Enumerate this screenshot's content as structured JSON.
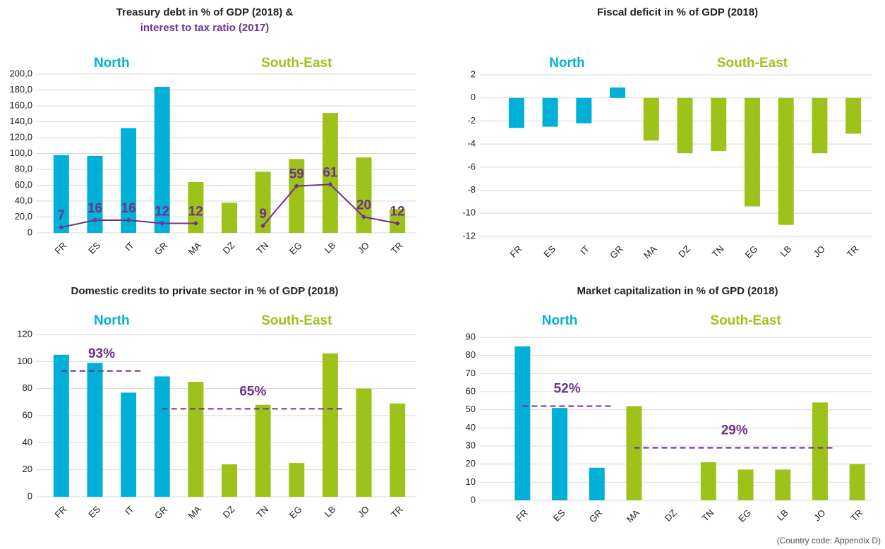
{
  "chart_data": [
    {
      "type": "bar",
      "title": "Treasury debt in % of GDP (2018) &",
      "subtitle": "interest to tax ratio (2017)",
      "subtitle_color": "#70308c",
      "categories": [
        "FR",
        "ES",
        "IT",
        "GR",
        "MA",
        "DZ",
        "TN",
        "EG",
        "LB",
        "JO",
        "TR"
      ],
      "groups": [
        {
          "name": "North",
          "color": "#00b0d8",
          "categories": [
            "FR",
            "ES",
            "IT",
            "GR"
          ]
        },
        {
          "name": "South-East",
          "color": "#9dc31a",
          "categories": [
            "MA",
            "DZ",
            "TN",
            "EG",
            "LB",
            "JO",
            "TR"
          ]
        }
      ],
      "values": [
        98,
        97,
        132,
        184,
        64,
        38,
        77,
        93,
        151,
        95,
        30
      ],
      "line": {
        "color": "#70308c",
        "values": [
          7,
          16,
          16,
          12,
          12,
          null,
          9,
          59,
          61,
          20,
          12
        ]
      },
      "ylim": [
        0,
        200
      ],
      "yticks": [
        0,
        {
          "value": 20,
          "label": "20,0"
        },
        {
          "value": 40,
          "label": "40,0"
        },
        {
          "value": 60,
          "label": "60,0"
        },
        {
          "value": 80,
          "label": "80,0"
        },
        {
          "value": 100,
          "label": "100,0"
        },
        {
          "value": 120,
          "label": "120,0"
        },
        {
          "value": 140,
          "label": "140,0"
        },
        {
          "value": 160,
          "label": "160,0"
        },
        {
          "value": 180,
          "label": "180,0"
        },
        {
          "value": 200,
          "label": "200,0"
        }
      ],
      "grid": true
    },
    {
      "type": "bar",
      "title": "Fiscal deficit in % of GDP (2018)",
      "categories": [
        "FR",
        "ES",
        "IT",
        "GR",
        "MA",
        "DZ",
        "TN",
        "EG",
        "LB",
        "JO",
        "TR"
      ],
      "groups": [
        {
          "name": "North",
          "color": "#00b0d8",
          "categories": [
            "FR",
            "ES",
            "IT",
            "GR"
          ]
        },
        {
          "name": "South-East",
          "color": "#9dc31a",
          "categories": [
            "MA",
            "DZ",
            "TN",
            "EG",
            "LB",
            "JO",
            "TR"
          ]
        }
      ],
      "values": [
        -2.6,
        -2.5,
        -2.2,
        0.9,
        -3.7,
        -4.8,
        -4.6,
        -9.4,
        -11,
        -4.8,
        -3.1
      ],
      "ylim": [
        -12,
        2
      ],
      "yticks": [
        -12,
        -10,
        -8,
        -6,
        -4,
        -2,
        0,
        2
      ],
      "grid": true
    },
    {
      "type": "bar",
      "title": "Domestic credits to private sector in % of GDP (2018)",
      "categories": [
        "FR",
        "ES",
        "IT",
        "GR",
        "MA",
        "DZ",
        "TN",
        "EG",
        "LB",
        "JO",
        "TR"
      ],
      "groups": [
        {
          "name": "North",
          "color": "#00b0d8",
          "categories": [
            "FR",
            "ES",
            "IT",
            "GR"
          ]
        },
        {
          "name": "South-East",
          "color": "#9dc31a",
          "categories": [
            "MA",
            "DZ",
            "TN",
            "EG",
            "LB",
            "JO",
            "TR"
          ]
        }
      ],
      "values": [
        105,
        99,
        77,
        89,
        85,
        24,
        68,
        25,
        106,
        80,
        69
      ],
      "reference_lines": [
        {
          "value": 93,
          "label": "93%",
          "from": "FR",
          "to": "IT",
          "color": "#70308c"
        },
        {
          "value": 65,
          "label": "65%",
          "from": "GR",
          "to": "LB",
          "color": "#70308c"
        }
      ],
      "ylim": [
        0,
        120
      ],
      "yticks": [
        0,
        20,
        40,
        60,
        80,
        100,
        120
      ],
      "grid": true
    },
    {
      "type": "bar",
      "title": "Market capitalization in % of GPD (2018)",
      "categories": [
        "FR",
        "ES",
        "GR",
        "MA",
        "DZ",
        "TN",
        "EG",
        "LB",
        "JO",
        "TR"
      ],
      "groups": [
        {
          "name": "North",
          "color": "#00b0d8",
          "categories": [
            "FR",
            "ES",
            "GR"
          ]
        },
        {
          "name": "South-East",
          "color": "#9dc31a",
          "categories": [
            "MA",
            "DZ",
            "TN",
            "EG",
            "LB",
            "JO",
            "TR"
          ]
        }
      ],
      "values": [
        85,
        51,
        18,
        52,
        null,
        21,
        17,
        17,
        54,
        20
      ],
      "reference_lines": [
        {
          "value": 52,
          "label": "52%",
          "from": "FR",
          "to": "GR",
          "color": "#70308c"
        },
        {
          "value": 29,
          "label": "29%",
          "from": "MA",
          "to": "JO",
          "color": "#70308c"
        }
      ],
      "ylim": [
        0,
        90
      ],
      "yticks": [
        0,
        10,
        20,
        30,
        40,
        50,
        60,
        70,
        80,
        90
      ],
      "grid": true
    }
  ],
  "footnote": "(Country code: Appendix D)"
}
